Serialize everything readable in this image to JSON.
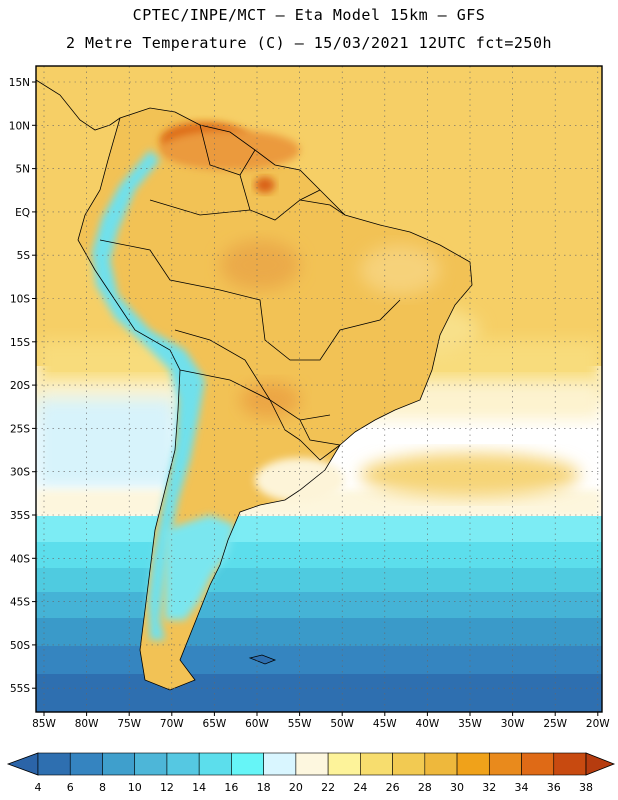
{
  "title_line1": "CPTEC/INPE/MCT –  Eta Model 15km – GFS",
  "title_line2": "2 Metre Temperature (C) – 15/03/2021 12UTC fct=250h",
  "lon_labels": [
    "85W",
    "80W",
    "75W",
    "70W",
    "65W",
    "60W",
    "55W",
    "50W",
    "45W",
    "40W",
    "35W",
    "30W",
    "25W",
    "20W"
  ],
  "lat_labels": [
    "15N",
    "10N",
    "5N",
    "EQ",
    "5S",
    "10S",
    "15S",
    "20S",
    "25S",
    "30S",
    "35S",
    "40S",
    "45S",
    "50S",
    "55S"
  ],
  "colorbar": {
    "ticks": [
      "4",
      "6",
      "8",
      "10",
      "12",
      "14",
      "16",
      "18",
      "20",
      "22",
      "24",
      "26",
      "28",
      "30",
      "32",
      "34",
      "36",
      "38"
    ],
    "colors": [
      "#2e6fb0",
      "#3584c0",
      "#3f9fcc",
      "#4db6d8",
      "#55c8e2",
      "#5cdeec",
      "#66f5f7",
      "#d9f6ff",
      "#fdf7df",
      "#fdf39a",
      "#f7dd6e",
      "#f2ca52",
      "#eeb83c",
      "#f0a21a",
      "#e98a1c",
      "#df6a16",
      "#c84a10"
    ],
    "under_color": "#2b64a8",
    "over_color": "#b63c0f"
  },
  "palette": {
    "ocean_north": "#f6cf66",
    "ocean_mid": "#fdf7df",
    "land_hot": "#eda042",
    "andes": "#66d8e6"
  }
}
